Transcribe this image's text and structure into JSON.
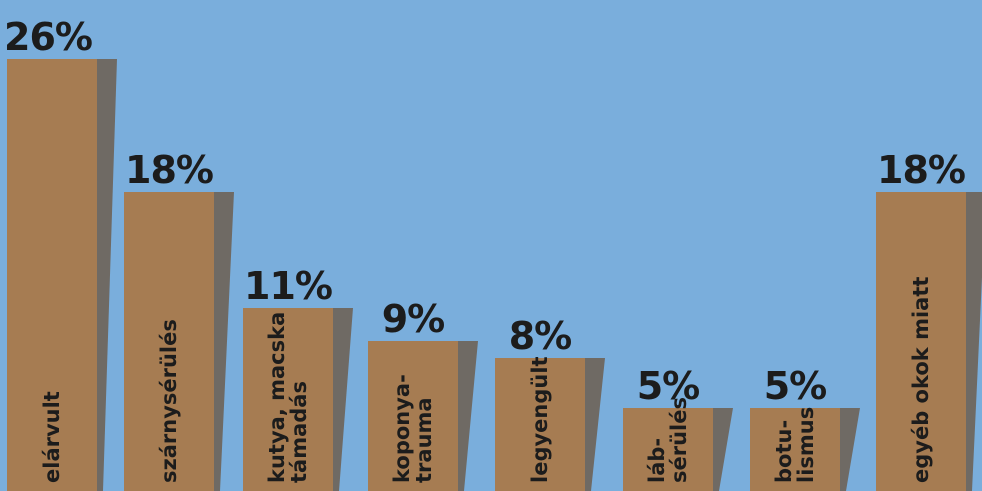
{
  "colors": {
    "background": "#7aaedc",
    "bar": "#a67c52",
    "shadow": "#6f6a64",
    "text": "#1c1c1c"
  },
  "chart_data": {
    "type": "bar",
    "title": "",
    "categories": [
      "elárvult",
      "szárnysérülés",
      "kutya, macska támadás",
      "koponya-trauma",
      "legyengült",
      "láb-sérülés",
      "botu-lismus",
      "egyéb okok miatt"
    ],
    "category_lines": [
      [
        "elárvult"
      ],
      [
        "szárnysérülés"
      ],
      [
        "kutya, macska",
        "támadás"
      ],
      [
        "koponya-",
        "trauma"
      ],
      [
        "legyengült"
      ],
      [
        "láb-",
        "sérülés"
      ],
      [
        "botu-",
        "lismus"
      ],
      [
        "egyéb okok miatt"
      ]
    ],
    "values": [
      26,
      18,
      11,
      9,
      8,
      5,
      5,
      18
    ],
    "value_labels": [
      "26%",
      "18%",
      "11%",
      "9%",
      "8%",
      "5%",
      "5%",
      "18%"
    ],
    "unit": "%",
    "ylim": [
      0,
      26
    ],
    "grid": false,
    "legend": "none"
  }
}
